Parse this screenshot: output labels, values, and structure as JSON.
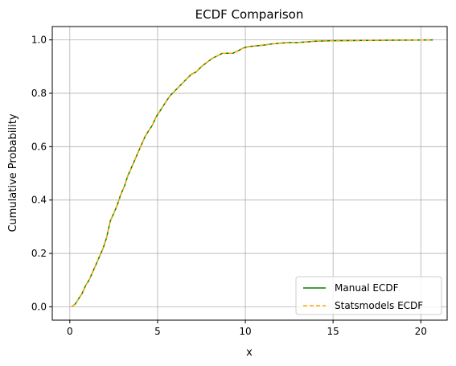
{
  "chart_data": {
    "type": "line",
    "title": "ECDF Comparison",
    "xlabel": "x",
    "ylabel": "Cumulative Probability",
    "xlim": [
      -1,
      21.5
    ],
    "ylim": [
      -0.05,
      1.05
    ],
    "xticks": [
      0,
      5,
      10,
      15,
      20
    ],
    "yticks": [
      0.0,
      0.2,
      0.4,
      0.6,
      0.8,
      1.0
    ],
    "xtick_labels": [
      "0",
      "5",
      "10",
      "15",
      "20"
    ],
    "ytick_labels": [
      "0.0",
      "0.2",
      "0.4",
      "0.6",
      "0.8",
      "1.0"
    ],
    "grid": true,
    "legend_position": "lower-right",
    "series": [
      {
        "name": "Manual ECDF",
        "color": "#008000",
        "style": "solid",
        "x": [
          0.1,
          0.3,
          0.5,
          0.7,
          0.9,
          1.1,
          1.3,
          1.5,
          1.7,
          1.9,
          2.1,
          2.3,
          2.5,
          2.7,
          2.9,
          3.1,
          3.3,
          3.5,
          3.7,
          3.9,
          4.1,
          4.3,
          4.5,
          4.7,
          4.9,
          5.1,
          5.3,
          5.5,
          5.7,
          6.0,
          6.3,
          6.6,
          6.9,
          7.2,
          7.5,
          7.8,
          8.1,
          8.4,
          8.7,
          9.0,
          9.3,
          9.6,
          9.9,
          10.2,
          10.5,
          11.0,
          11.5,
          12.0,
          12.5,
          13.0,
          14.0,
          15.0,
          17.0,
          19.0,
          20.7
        ],
        "y": [
          0.0,
          0.01,
          0.03,
          0.05,
          0.08,
          0.1,
          0.13,
          0.16,
          0.19,
          0.22,
          0.26,
          0.32,
          0.35,
          0.38,
          0.42,
          0.45,
          0.49,
          0.52,
          0.55,
          0.58,
          0.61,
          0.64,
          0.66,
          0.68,
          0.71,
          0.73,
          0.75,
          0.77,
          0.79,
          0.81,
          0.83,
          0.85,
          0.87,
          0.88,
          0.9,
          0.915,
          0.93,
          0.94,
          0.95,
          0.95,
          0.95,
          0.96,
          0.97,
          0.975,
          0.977,
          0.98,
          0.985,
          0.988,
          0.99,
          0.99,
          0.995,
          0.997,
          0.998,
          0.999,
          1.0
        ]
      },
      {
        "name": "Statsmodels ECDF",
        "color": "#FFA500",
        "style": "dashed",
        "x": [
          0.1,
          0.3,
          0.5,
          0.7,
          0.9,
          1.1,
          1.3,
          1.5,
          1.7,
          1.9,
          2.1,
          2.3,
          2.5,
          2.7,
          2.9,
          3.1,
          3.3,
          3.5,
          3.7,
          3.9,
          4.1,
          4.3,
          4.5,
          4.7,
          4.9,
          5.1,
          5.3,
          5.5,
          5.7,
          6.0,
          6.3,
          6.6,
          6.9,
          7.2,
          7.5,
          7.8,
          8.1,
          8.4,
          8.7,
          9.0,
          9.3,
          9.6,
          9.9,
          10.2,
          10.5,
          11.0,
          11.5,
          12.0,
          12.5,
          13.0,
          14.0,
          15.0,
          17.0,
          19.0,
          20.7
        ],
        "y": [
          0.0,
          0.01,
          0.03,
          0.05,
          0.08,
          0.1,
          0.13,
          0.16,
          0.19,
          0.22,
          0.26,
          0.32,
          0.35,
          0.38,
          0.42,
          0.45,
          0.49,
          0.52,
          0.55,
          0.58,
          0.61,
          0.64,
          0.66,
          0.68,
          0.71,
          0.73,
          0.75,
          0.77,
          0.79,
          0.81,
          0.83,
          0.85,
          0.87,
          0.88,
          0.9,
          0.915,
          0.93,
          0.94,
          0.95,
          0.95,
          0.95,
          0.96,
          0.97,
          0.975,
          0.977,
          0.98,
          0.985,
          0.988,
          0.99,
          0.99,
          0.995,
          0.997,
          0.998,
          0.999,
          1.0
        ]
      }
    ]
  }
}
